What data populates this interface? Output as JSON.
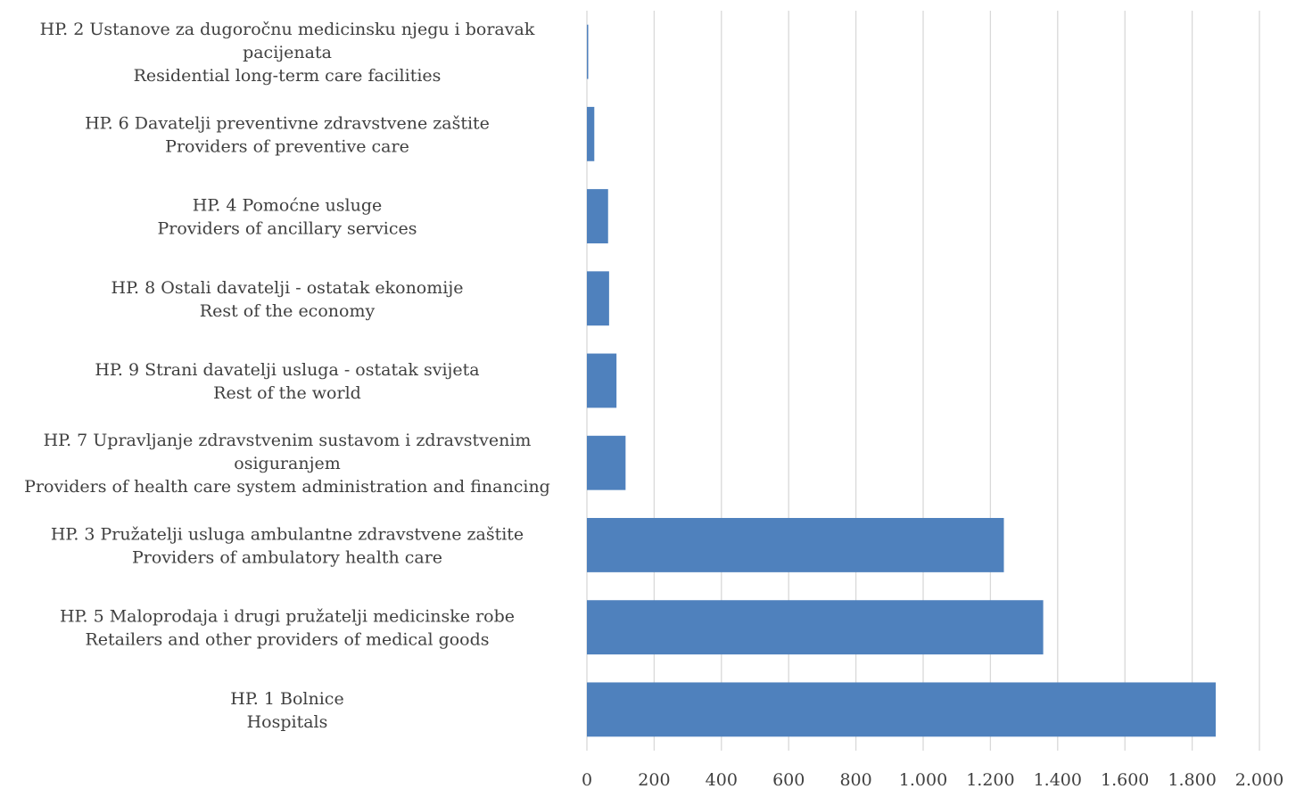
{
  "colors": {
    "bar": "#4f81bd",
    "grid": "#d9d9d9",
    "text": "#404040"
  },
  "chart_data": {
    "type": "bar",
    "orientation": "horizontal",
    "categories": [
      [
        "HP. 2  Ustanove za dugoročnu medicinsku njegu i boravak",
        "pacijenata",
        "Residential long-term care facilities"
      ],
      [
        "HP. 6 Davatelji preventivne zdravstvene zaštite",
        "Providers of preventive care"
      ],
      [
        "HP. 4  Pomoćne usluge",
        "Providers of ancillary services"
      ],
      [
        "HP. 8 Ostali davatelji - ostatak ekonomije",
        "Rest of the economy"
      ],
      [
        "HP. 9 Strani davatelji usluga - ostatak svijeta",
        "Rest of the world"
      ],
      [
        "HP. 7 Upravljanje zdravstvenim sustavom i zdravstvenim",
        "osiguranjem",
        "Providers of health care system administration and financing"
      ],
      [
        "HP. 3  Pružatelji usluga ambulantne zdravstvene zaštite",
        "Providers of ambulatory health care"
      ],
      [
        "HP. 5 Maloprodaja i drugi pružatelji medicinske robe",
        "Retailers and other providers of medical goods"
      ],
      [
        "HP. 1  Bolnice",
        "Hospitals"
      ]
    ],
    "values": [
      4,
      22,
      63,
      66,
      88,
      115,
      1240,
      1357,
      1870
    ],
    "xlim": [
      0,
      2000
    ],
    "xticks": [
      0,
      200,
      400,
      600,
      800,
      1000,
      1200,
      1400,
      1600,
      1800,
      2000
    ],
    "xtick_labels": [
      "0",
      "200",
      "400",
      "600",
      "800",
      "1.000",
      "1.200",
      "1.400",
      "1.600",
      "1.800",
      "2.000"
    ],
    "grid": "vertical",
    "legend": "none",
    "title": "",
    "xlabel": "",
    "ylabel": ""
  }
}
